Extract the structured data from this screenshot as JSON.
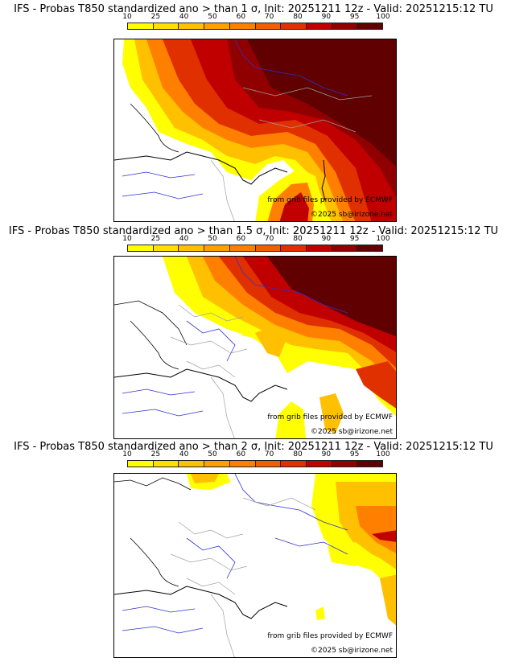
{
  "panels": [
    {
      "title": "IFS - Probas T850  standardized ano > than 1 σ, Init: 20251211 12z - Valid: 20251215:12 TU",
      "threshold_sigma": 1,
      "credit_source": "from grib files provided by ECMWF",
      "credit_copyright": "©2025 sb@irizone.net"
    },
    {
      "title": "IFS - Probas T850  standardized ano > than 1.5 σ, Init: 20251211 12z - Valid: 20251215:12 TU",
      "threshold_sigma": 1.5,
      "credit_source": "from grib files provided by ECMWF",
      "credit_copyright": "©2025 sb@irizone.net"
    },
    {
      "title": "IFS - Probas T850  standardized ano > than 2 σ, Init: 20251211 12z - Valid: 20251215:12 TU",
      "threshold_sigma": 2,
      "credit_source": "from grib files provided by ECMWF",
      "credit_copyright": "©2025 sb@irizone.net"
    }
  ],
  "legend": {
    "labels": [
      "10",
      "25",
      "40",
      "50",
      "60",
      "70",
      "80",
      "90",
      "95",
      "100"
    ],
    "colors": [
      "#ffff00",
      "#ffe000",
      "#ffc000",
      "#ffa000",
      "#ff8000",
      "#f06000",
      "#e03000",
      "#c00000",
      "#900000",
      "#600000"
    ]
  },
  "map_colors": {
    "coast": "#000000",
    "rivers": "#3030d0",
    "borders": "#a0a0a0"
  }
}
